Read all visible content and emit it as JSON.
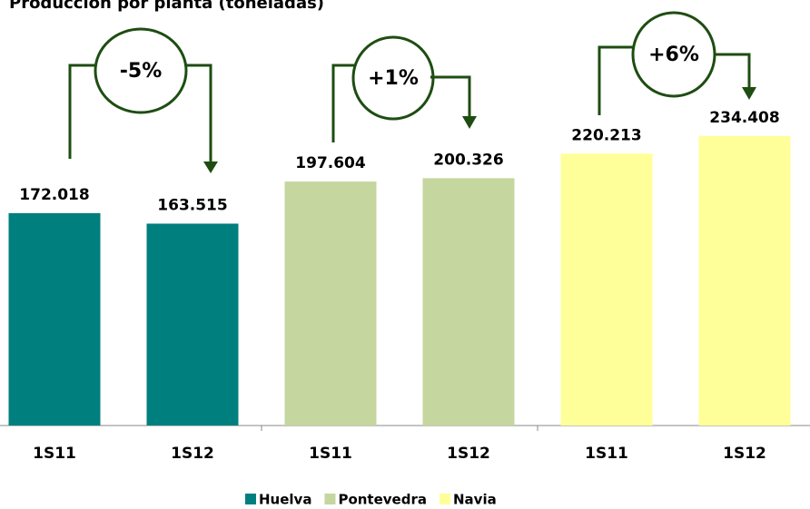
{
  "chart_data": {
    "type": "bar",
    "title": "Producción por planta (toneladas)",
    "categories": [
      "1S11",
      "1S12",
      "1S11",
      "1S12",
      "1S11",
      "1S12"
    ],
    "series": [
      {
        "name": "Huelva",
        "color": "#007f7f",
        "values": [
          172018,
          163515,
          null,
          null,
          null,
          null
        ],
        "value_labels": [
          "172.018",
          "163.515",
          null,
          null,
          null,
          null
        ]
      },
      {
        "name": "Pontevedra",
        "color": "#c5d69f",
        "values": [
          null,
          null,
          197604,
          200326,
          null,
          null
        ],
        "value_labels": [
          null,
          null,
          "197.604",
          "200.326",
          null,
          null
        ]
      },
      {
        "name": "Navia",
        "color": "#ffff99",
        "values": [
          null,
          null,
          null,
          null,
          220213,
          234408
        ],
        "value_labels": [
          null,
          null,
          null,
          null,
          "220.213",
          "234.408"
        ]
      }
    ],
    "annotations": [
      "-5%",
      "+1%",
      "+6%"
    ],
    "legend": "bottom"
  }
}
